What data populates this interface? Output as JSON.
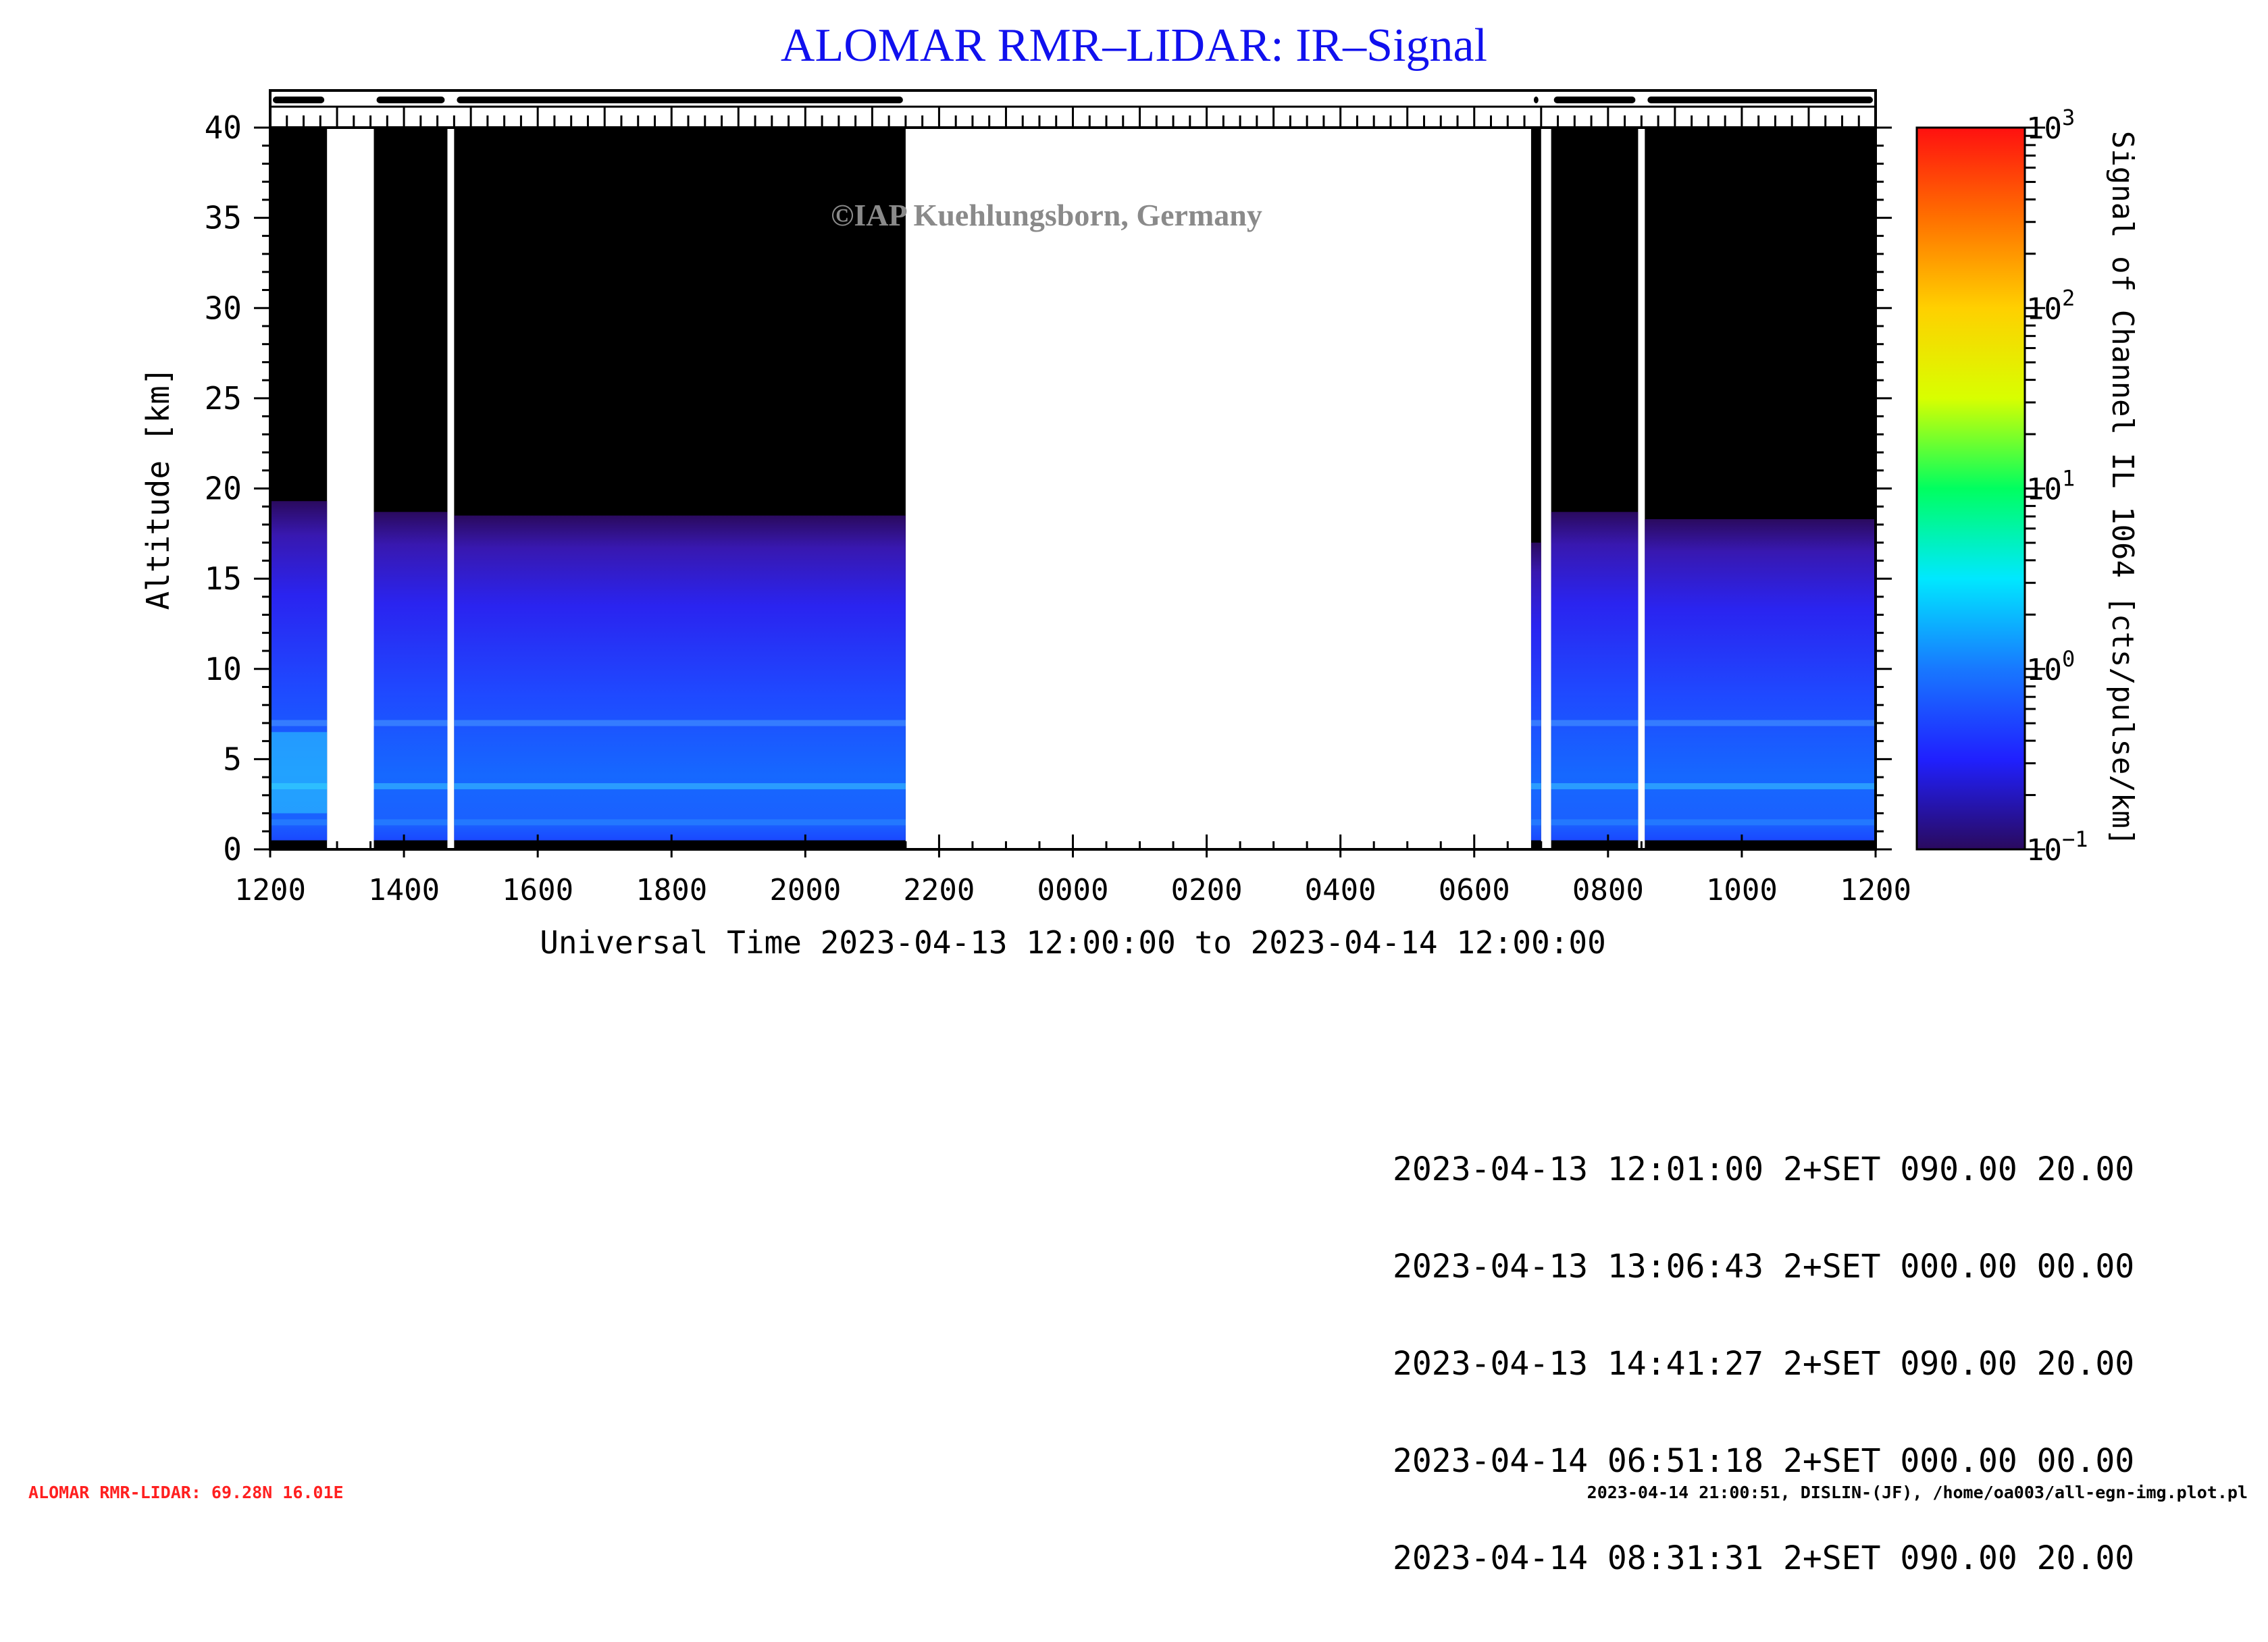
{
  "title": "ALOMAR RMR–LIDAR: IR–Signal",
  "watermark": "©IAP Kuehlungsborn, Germany",
  "chart_data": {
    "type": "heatmap",
    "xlabel": "Universal Time 2023-04-13 12:00:00 to 2023-04-14 12:00:00",
    "ylabel": "Altitude [km]",
    "x_ticks": [
      "1200",
      "1400",
      "1600",
      "1800",
      "2000",
      "2200",
      "0000",
      "0200",
      "0400",
      "0600",
      "0800",
      "1000",
      "1200"
    ],
    "x_range_hours": [
      0,
      24
    ],
    "ylim": [
      0,
      40
    ],
    "y_ticks": [
      0,
      5,
      10,
      15,
      20,
      25,
      30,
      35,
      40
    ],
    "colorbar": {
      "label": "Signal of Channel IL 1064 [cts/pulse/km]",
      "scale": "log",
      "range": [
        0.1,
        1000
      ],
      "ticks": [
        {
          "base": "10",
          "exp": "3",
          "value": 1000
        },
        {
          "base": "10",
          "exp": "2",
          "value": 100
        },
        {
          "base": "10",
          "exp": "1",
          "value": 10
        },
        {
          "base": "10",
          "exp": "0",
          "value": 1
        },
        {
          "base": "10",
          "exp": "−1",
          "value": 0.1
        }
      ],
      "colors": [
        "#2a0a5e",
        "#2020ff",
        "#1878ff",
        "#00e8ff",
        "#00ff60",
        "#d8ff00",
        "#ffd000",
        "#ff7000",
        "#ff1010"
      ]
    },
    "measurement_periods_hours": [
      {
        "start": 0.0,
        "end": 0.85,
        "cloud_top_km": 19.3
      },
      {
        "start": 1.55,
        "end": 2.65,
        "cloud_top_km": 18.7
      },
      {
        "start": 2.75,
        "end": 9.5,
        "cloud_top_km": 18.5
      },
      {
        "start": 18.85,
        "end": 19.0,
        "cloud_top_km": 17.0
      },
      {
        "start": 19.15,
        "end": 20.45,
        "cloud_top_km": 18.7
      },
      {
        "start": 20.55,
        "end": 24.0,
        "cloud_top_km": 18.3
      }
    ],
    "layer_levels_km": [
      7.0,
      3.5,
      1.5
    ],
    "status_bar": "top"
  },
  "log_entries": [
    "2023-04-13 12:01:00 2+SET 090.00 20.00",
    "2023-04-13 13:06:43 2+SET 000.00 00.00",
    "2023-04-13 14:41:27 2+SET 090.00 20.00",
    "2023-04-14 06:51:18 2+SET 000.00 00.00",
    "2023-04-14 08:31:31 2+SET 090.00 20.00"
  ],
  "footer": {
    "left": "ALOMAR RMR-LIDAR: 69.28N 16.01E",
    "right": "2023-04-14 21:00:51, DISLIN-(JF), /home/oa003/all-egn-img.plot.pl"
  }
}
